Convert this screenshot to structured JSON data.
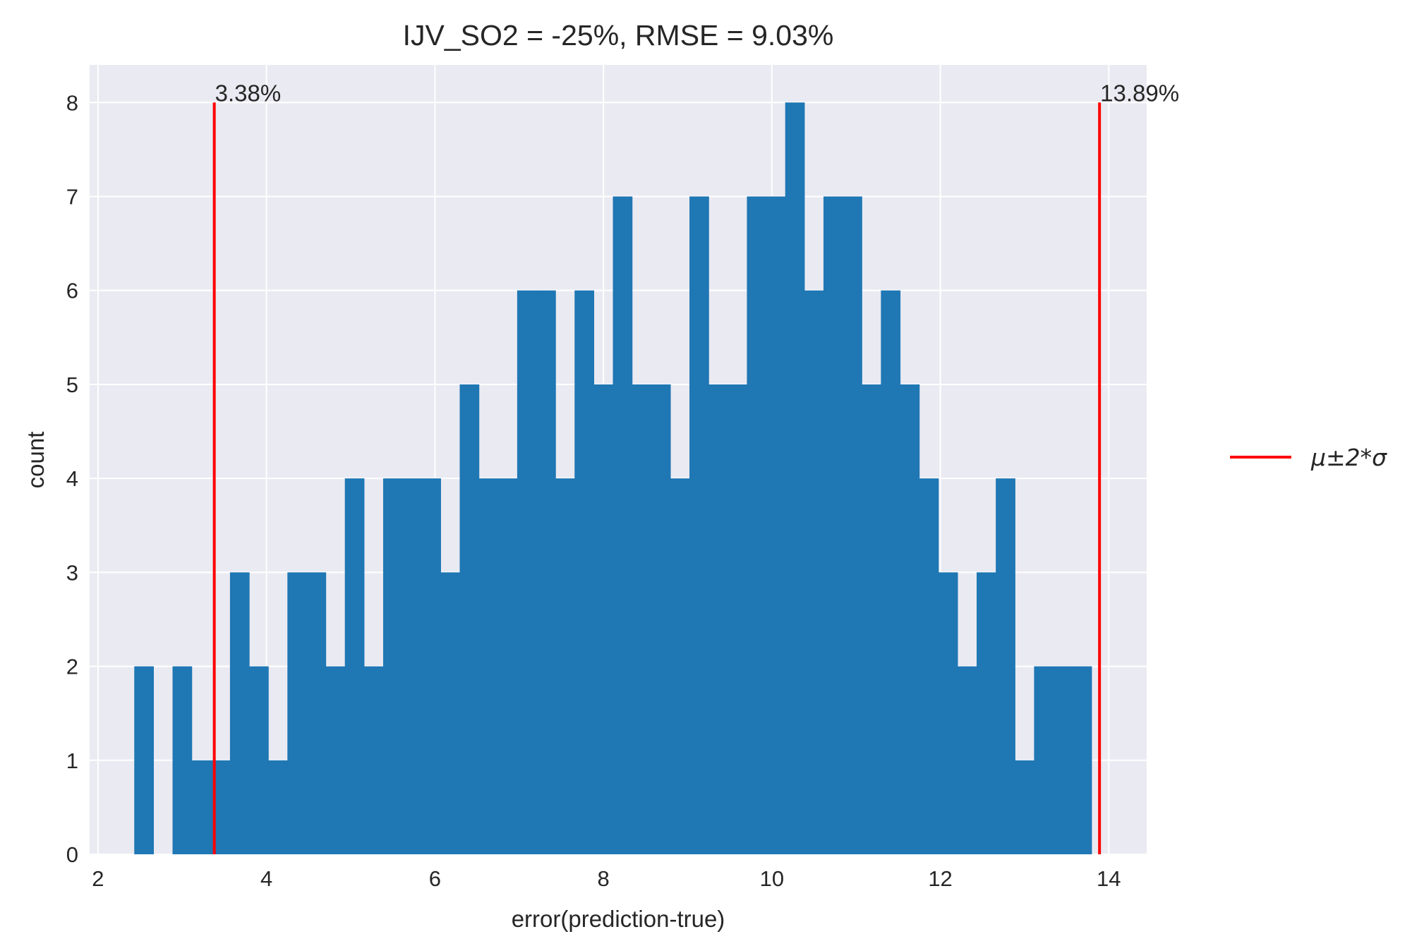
{
  "chart_data": {
    "type": "bar",
    "title": "IJV_SO2 = -25%, RMSE = 9.03%",
    "xlabel": "error(prediction-true)",
    "ylabel": "count",
    "xlim": [
      1.9,
      14.45
    ],
    "ylim": [
      0,
      8.4
    ],
    "xticks": [
      2,
      4,
      6,
      8,
      10,
      12,
      14
    ],
    "yticks": [
      0,
      1,
      2,
      3,
      4,
      5,
      6,
      7,
      8
    ],
    "grid": true,
    "bar_color": "#1f77b4",
    "bins": {
      "start": 2.43,
      "width": 0.2273,
      "counts": [
        2,
        0,
        2,
        1,
        1,
        3,
        2,
        1,
        3,
        3,
        2,
        4,
        2,
        4,
        4,
        4,
        3,
        5,
        4,
        4,
        6,
        6,
        4,
        6,
        5,
        7,
        5,
        5,
        4,
        7,
        5,
        5,
        7,
        7,
        8,
        6,
        7,
        7,
        5,
        6,
        5,
        4,
        3,
        2,
        3,
        4,
        1,
        2,
        2,
        2
      ]
    },
    "reference_lines": {
      "color": "#ff0000",
      "label": "μ±2*σ",
      "values": [
        3.38,
        13.89
      ],
      "labels": [
        "3.38%",
        "13.89%"
      ],
      "height": 8
    },
    "legend": {
      "position": "right",
      "entries": [
        "μ±2*σ"
      ]
    }
  }
}
